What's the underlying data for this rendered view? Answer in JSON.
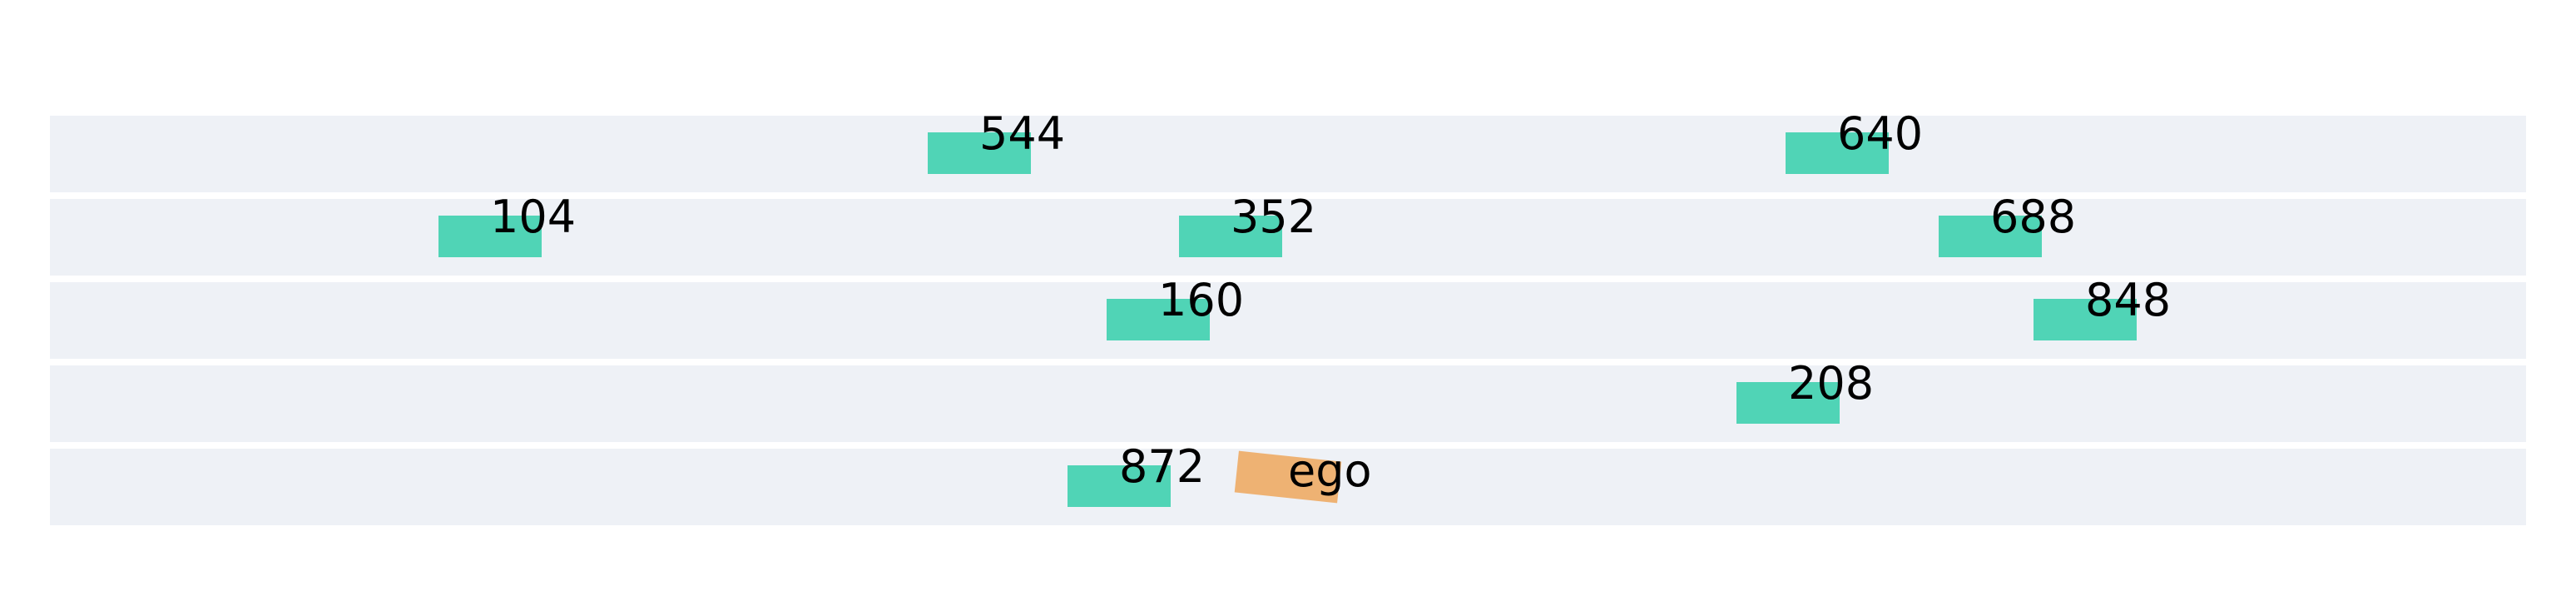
{
  "colors": {
    "background": "#ffffff",
    "road": "#eef1f6",
    "lane_divider": "#ffffff",
    "vehicle": "#50d4b6",
    "ego": "#eeb273",
    "label": "#000000"
  },
  "road": {
    "lanes": 5
  },
  "vehicles": [
    {
      "id": "544",
      "label": "544",
      "lane": 0,
      "role": "other"
    },
    {
      "id": "640",
      "label": "640",
      "lane": 0,
      "role": "other"
    },
    {
      "id": "104",
      "label": "104",
      "lane": 1,
      "role": "other"
    },
    {
      "id": "352",
      "label": "352",
      "lane": 1,
      "role": "other"
    },
    {
      "id": "688",
      "label": "688",
      "lane": 1,
      "role": "other"
    },
    {
      "id": "160",
      "label": "160",
      "lane": 2,
      "role": "other"
    },
    {
      "id": "848",
      "label": "848",
      "lane": 2,
      "role": "other"
    },
    {
      "id": "208",
      "label": "208",
      "lane": 3,
      "role": "other"
    },
    {
      "id": "872",
      "label": "872",
      "lane": 4,
      "role": "other"
    },
    {
      "id": "ego",
      "label": "ego",
      "lane": 4,
      "role": "ego"
    }
  ]
}
